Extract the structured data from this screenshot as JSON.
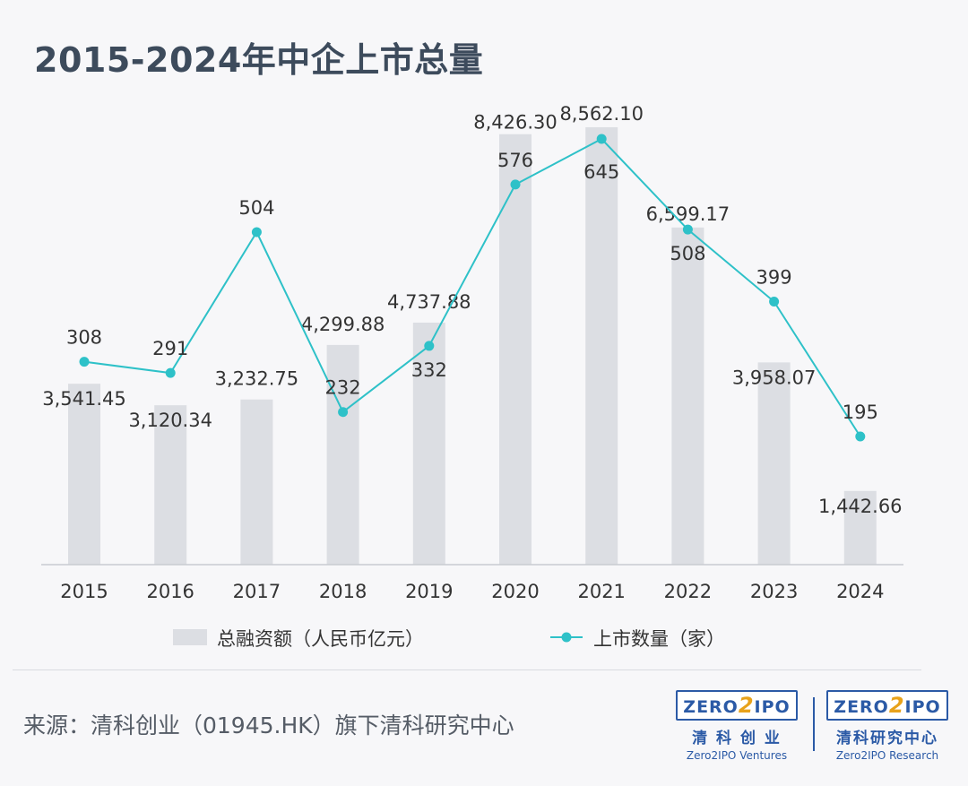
{
  "title": "2015-2024年中企上市总量",
  "source": "来源：清科创业（01945.HK）旗下清科研究中心",
  "logos": [
    {
      "mark_left": "ZERO",
      "mark_two": "2",
      "mark_right": "IPO",
      "cn": "清 科 创 业",
      "en": "Zero2IPO Ventures"
    },
    {
      "mark_left": "ZERO",
      "mark_two": "2",
      "mark_right": "IPO",
      "cn": "清科研究中心",
      "en": "Zero2IPO Research"
    }
  ],
  "colors": {
    "bar": "#dcdee3",
    "line": "#2ec1c8",
    "axis": "#c8cbd1",
    "label": "#333333",
    "title": "#3d4b5c"
  },
  "chart_data": {
    "type": "bar+line",
    "categories": [
      "2015",
      "2016",
      "2017",
      "2018",
      "2019",
      "2020",
      "2021",
      "2022",
      "2023",
      "2024"
    ],
    "series": [
      {
        "name": "总融资额（人民币亿元）",
        "type": "bar",
        "values": [
          3541.45,
          3120.34,
          3232.75,
          4299.88,
          4737.88,
          8426.3,
          8562.1,
          6599.17,
          3958.07,
          1442.66
        ],
        "labels": [
          "3,541.45",
          "3,120.34",
          "3,232.75",
          "4,299.88",
          "4,737.88",
          "8,426.30",
          "8,562.10",
          "6,599.17",
          "3,958.07",
          "1,442.66"
        ]
      },
      {
        "name": "上市数量（家）",
        "type": "line",
        "values": [
          308,
          291,
          504,
          232,
          332,
          576,
          645,
          508,
          399,
          195
        ],
        "labels": [
          "308",
          "291",
          "504",
          "232",
          "332",
          "576",
          "645",
          "508",
          "399",
          "195"
        ]
      }
    ],
    "legend_position": "bottom",
    "grid": false
  }
}
